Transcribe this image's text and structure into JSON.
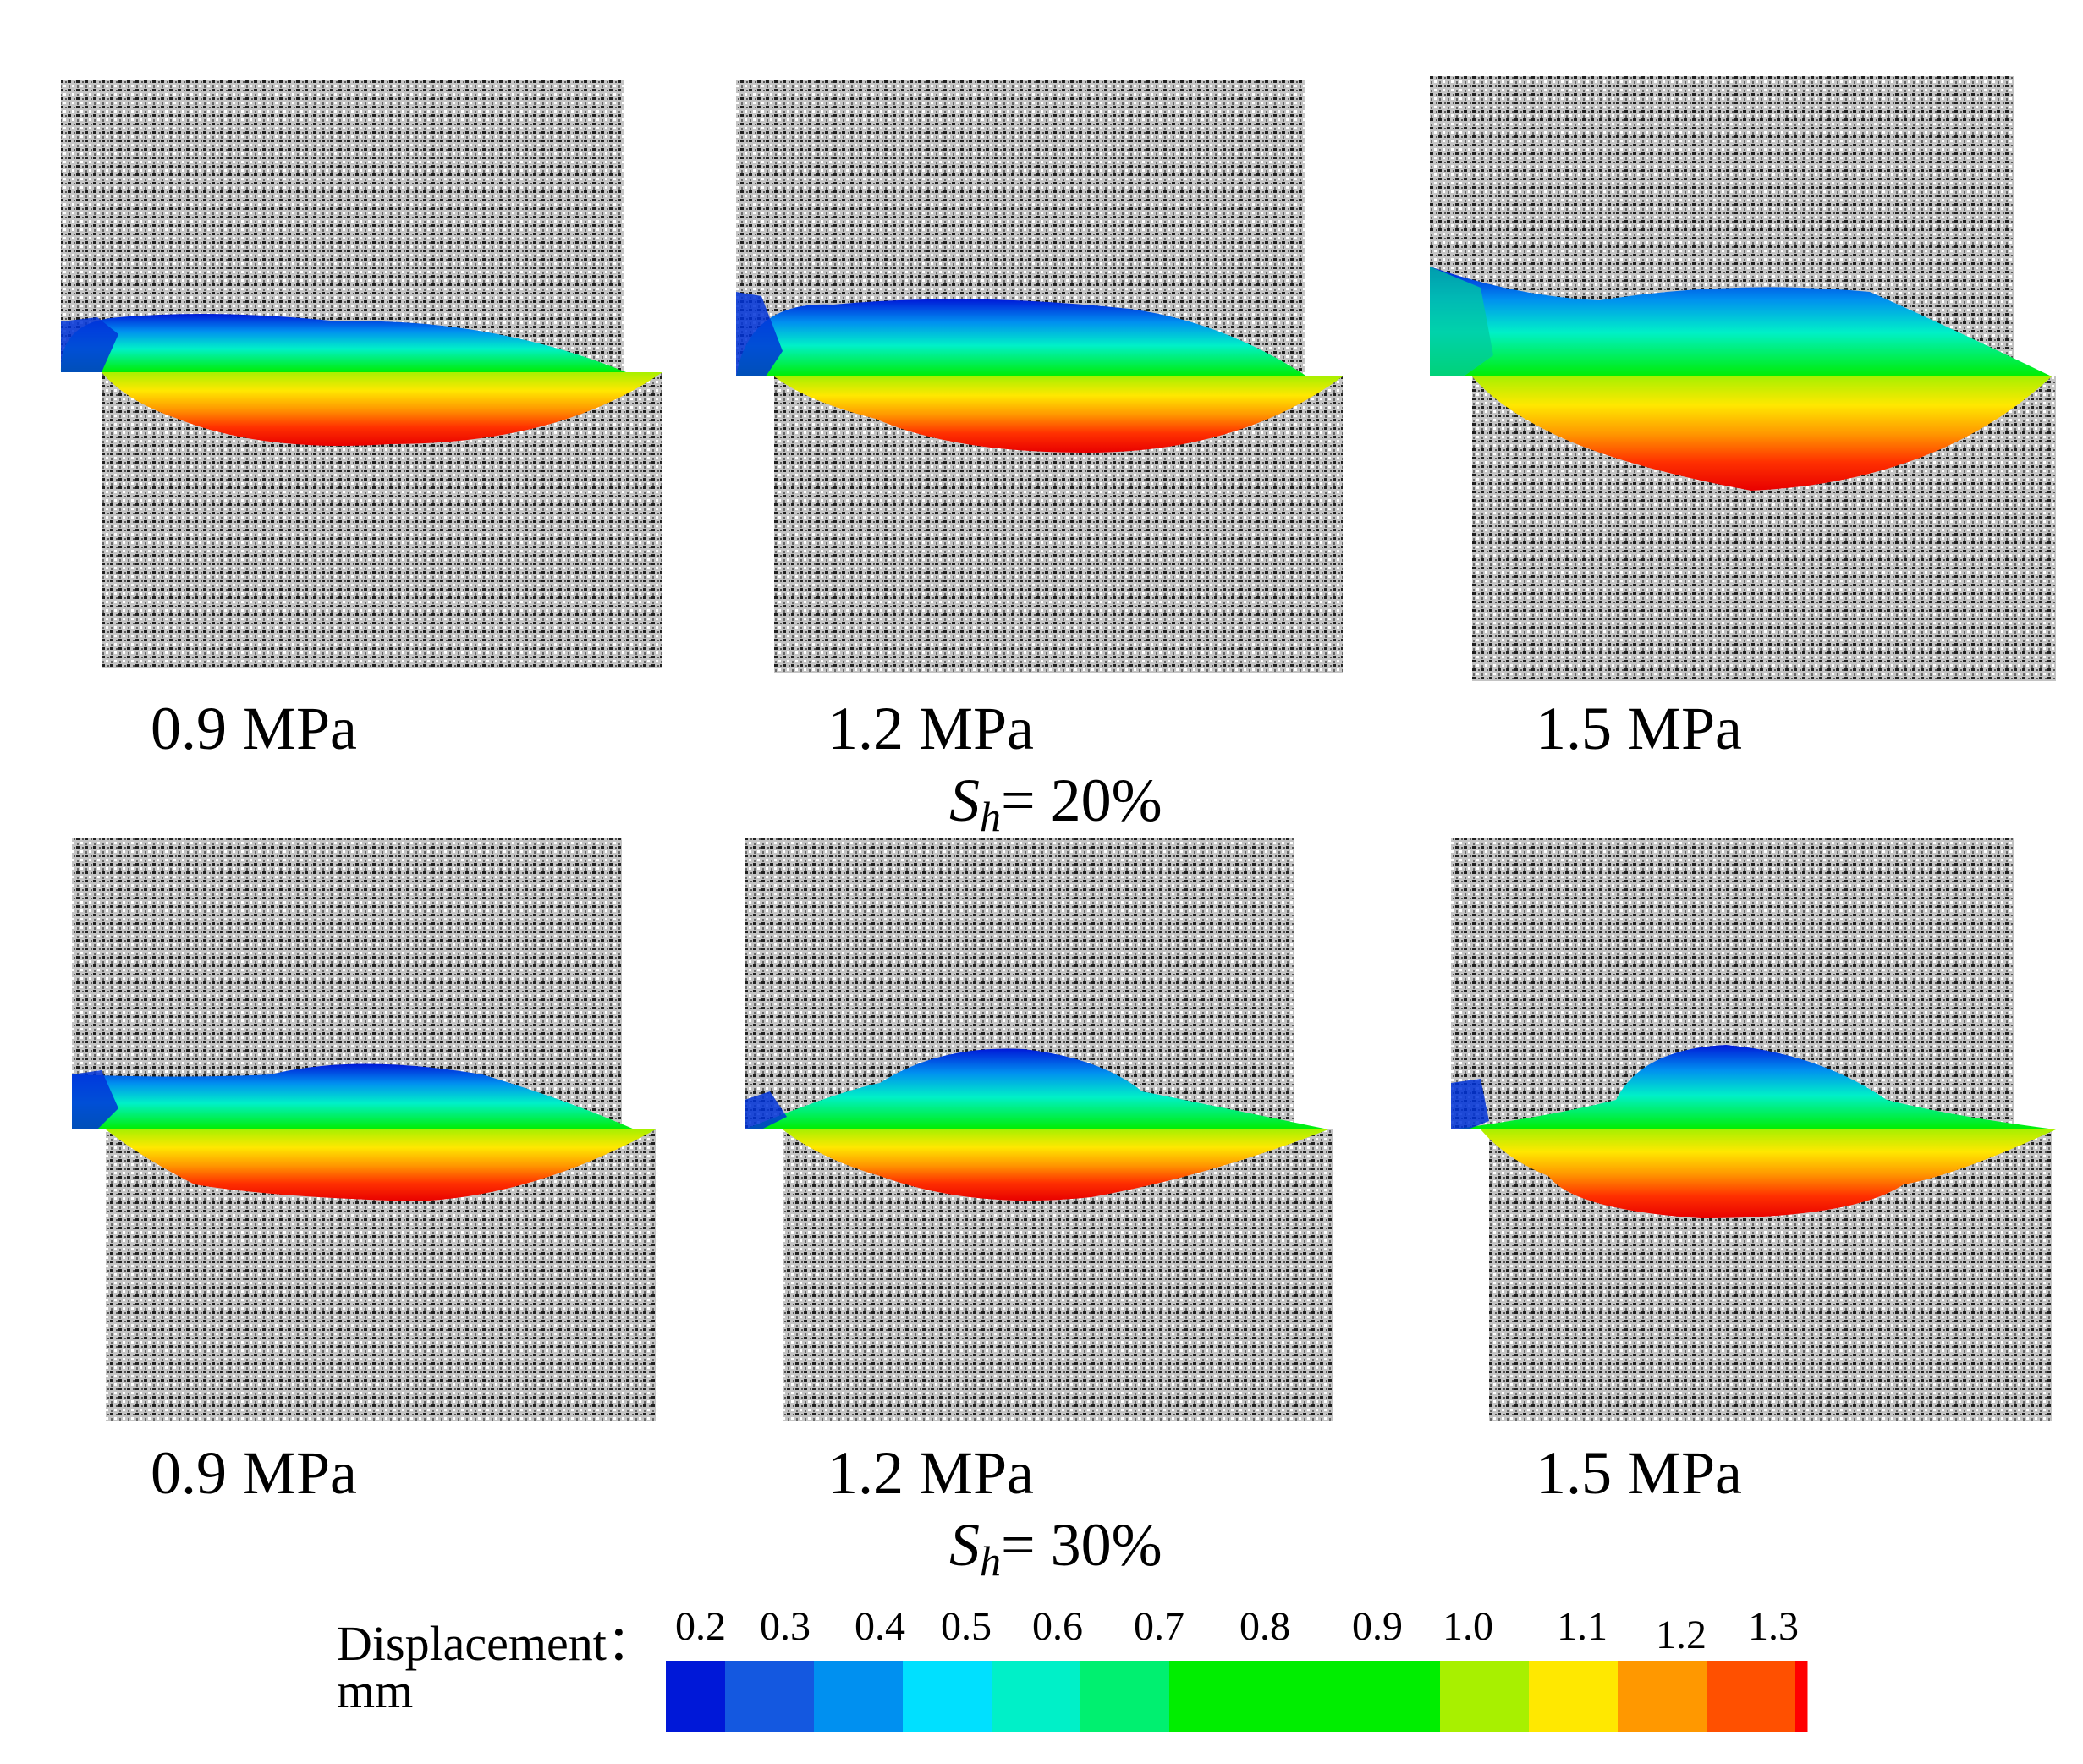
{
  "rows": [
    {
      "group_label": {
        "symbol": "S",
        "subscript": "h",
        "value": "= 20%"
      },
      "panels": [
        {
          "pressure": "0.9 MPa"
        },
        {
          "pressure": "1.2 MPa"
        },
        {
          "pressure": "1.5 MPa"
        }
      ]
    },
    {
      "group_label": {
        "symbol": "S",
        "subscript": "h",
        "value": "= 30%"
      },
      "panels": [
        {
          "pressure": "0.9 MPa"
        },
        {
          "pressure": "1.2 MPa"
        },
        {
          "pressure": "1.5 MPa"
        }
      ]
    }
  ],
  "legend": {
    "title_line1": "Displacement：",
    "title_line2": "mm",
    "ticks": [
      "0.2",
      "0.3",
      "0.4",
      "0.5",
      "0.6",
      "0.7",
      "0.8",
      "0.9",
      "1.0",
      "1.1",
      "1.2",
      "1.3"
    ],
    "colors": [
      "#0018d8",
      "#1458e0",
      "#0090f0",
      "#00e0ff",
      "#00f0c8",
      "#00f070",
      "#00ee00",
      "#00ee00",
      "#00ee00",
      "#a8f000",
      "#ffe800",
      "#ff9800",
      "#ff5000",
      "#ff0000"
    ]
  }
}
